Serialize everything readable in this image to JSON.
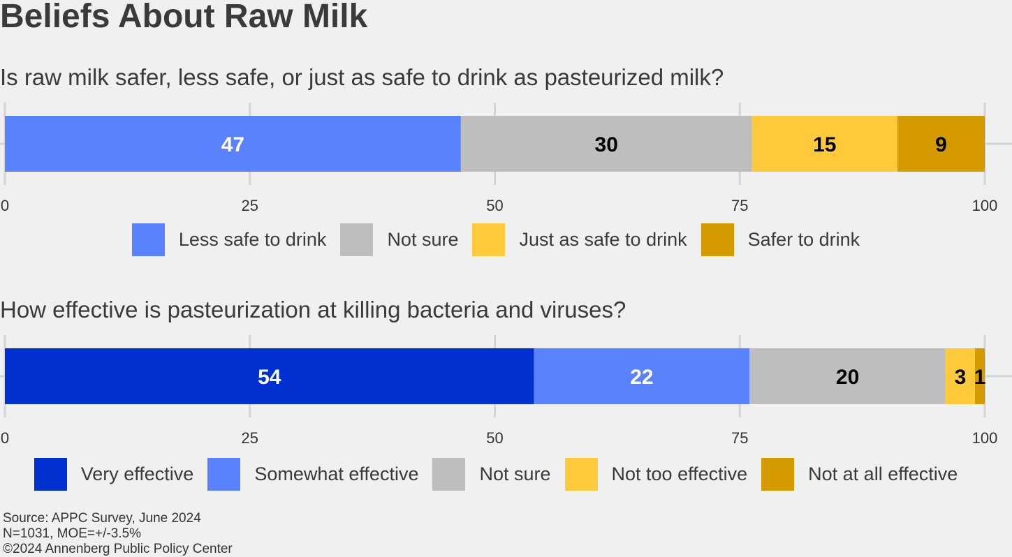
{
  "title": "Beliefs About Raw Milk",
  "source": [
    "Source: APPC Survey, June 2024",
    "N=1031, MOE=+/-3.5%",
    "©2024 Annenberg Public Policy Center"
  ],
  "chart_data": [
    {
      "type": "bar",
      "orientation": "horizontal-stacked",
      "title": "Is raw milk safer, less safe, or just as safe to drink as pasteurized milk?",
      "xlim": [
        0,
        100
      ],
      "xticks": [
        "0",
        "25",
        "50",
        "75",
        "100"
      ],
      "grid": true,
      "legend_position": "bottom",
      "series": [
        {
          "name": "Less safe to drink",
          "values": [
            47
          ],
          "color": "#5a82ff",
          "label_color": "#ffffff"
        },
        {
          "name": "Not sure",
          "values": [
            30
          ],
          "color": "#bebebe",
          "label_color": "#000000"
        },
        {
          "name": "Just as safe to drink",
          "values": [
            15
          ],
          "color": "#ffc93c",
          "label_color": "#000000"
        },
        {
          "name": "Safer to drink",
          "values": [
            9
          ],
          "color": "#d49a00",
          "label_color": "#000000"
        }
      ]
    },
    {
      "type": "bar",
      "orientation": "horizontal-stacked",
      "title": "How effective is pasteurization at killing bacteria and viruses?",
      "xlim": [
        0,
        100
      ],
      "xticks": [
        "0",
        "25",
        "50",
        "75",
        "100"
      ],
      "grid": true,
      "legend_position": "bottom",
      "series": [
        {
          "name": "Very effective",
          "values": [
            54
          ],
          "color": "#0030d0",
          "label_color": "#ffffff"
        },
        {
          "name": "Somewhat effective",
          "values": [
            22
          ],
          "color": "#5a82ff",
          "label_color": "#ffffff"
        },
        {
          "name": "Not sure",
          "values": [
            20
          ],
          "color": "#bebebe",
          "label_color": "#000000"
        },
        {
          "name": "Not too effective",
          "values": [
            3
          ],
          "color": "#ffc93c",
          "label_color": "#000000"
        },
        {
          "name": "Not at all effective",
          "values": [
            1
          ],
          "color": "#d49a00",
          "label_color": "#000000"
        }
      ]
    }
  ]
}
